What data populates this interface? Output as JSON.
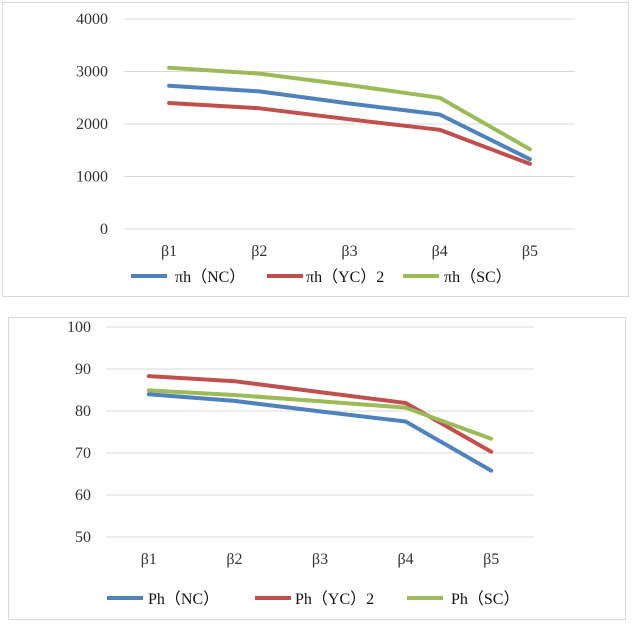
{
  "chart_data": [
    {
      "type": "line",
      "categories": [
        "β1",
        "β2",
        "β3",
        "β4",
        "β5"
      ],
      "ylim": [
        0,
        4000
      ],
      "yticks": [
        0,
        1000,
        2000,
        3000,
        4000
      ],
      "grid": true,
      "legend_position": "bottom",
      "series": [
        {
          "name": "πh（NC）",
          "color": "#4f81bd",
          "values": [
            2730,
            2620,
            2390,
            2180,
            1330
          ]
        },
        {
          "name": "πh（YC）2",
          "color": "#c0504d",
          "values": [
            2400,
            2300,
            2090,
            1890,
            1240
          ]
        },
        {
          "name": "πh（SC）",
          "color": "#9bbb59",
          "values": [
            3070,
            2960,
            2740,
            2500,
            1520
          ]
        }
      ]
    },
    {
      "type": "line",
      "categories": [
        "β1",
        "β2",
        "β3",
        "β4",
        "β5"
      ],
      "ylim": [
        50,
        100
      ],
      "yticks": [
        50,
        60,
        70,
        80,
        90,
        100
      ],
      "grid": true,
      "legend_position": "bottom",
      "series": [
        {
          "name": "Ph（NC）",
          "color": "#4f81bd",
          "values": [
            84.0,
            82.4,
            79.9,
            77.5,
            65.8
          ]
        },
        {
          "name": "Ph（YC）2",
          "color": "#c0504d",
          "values": [
            88.3,
            87.1,
            84.5,
            81.9,
            70.3
          ]
        },
        {
          "name": "Ph（SC）",
          "color": "#9bbb59",
          "values": [
            84.9,
            83.8,
            82.3,
            80.8,
            73.4
          ]
        }
      ]
    }
  ]
}
